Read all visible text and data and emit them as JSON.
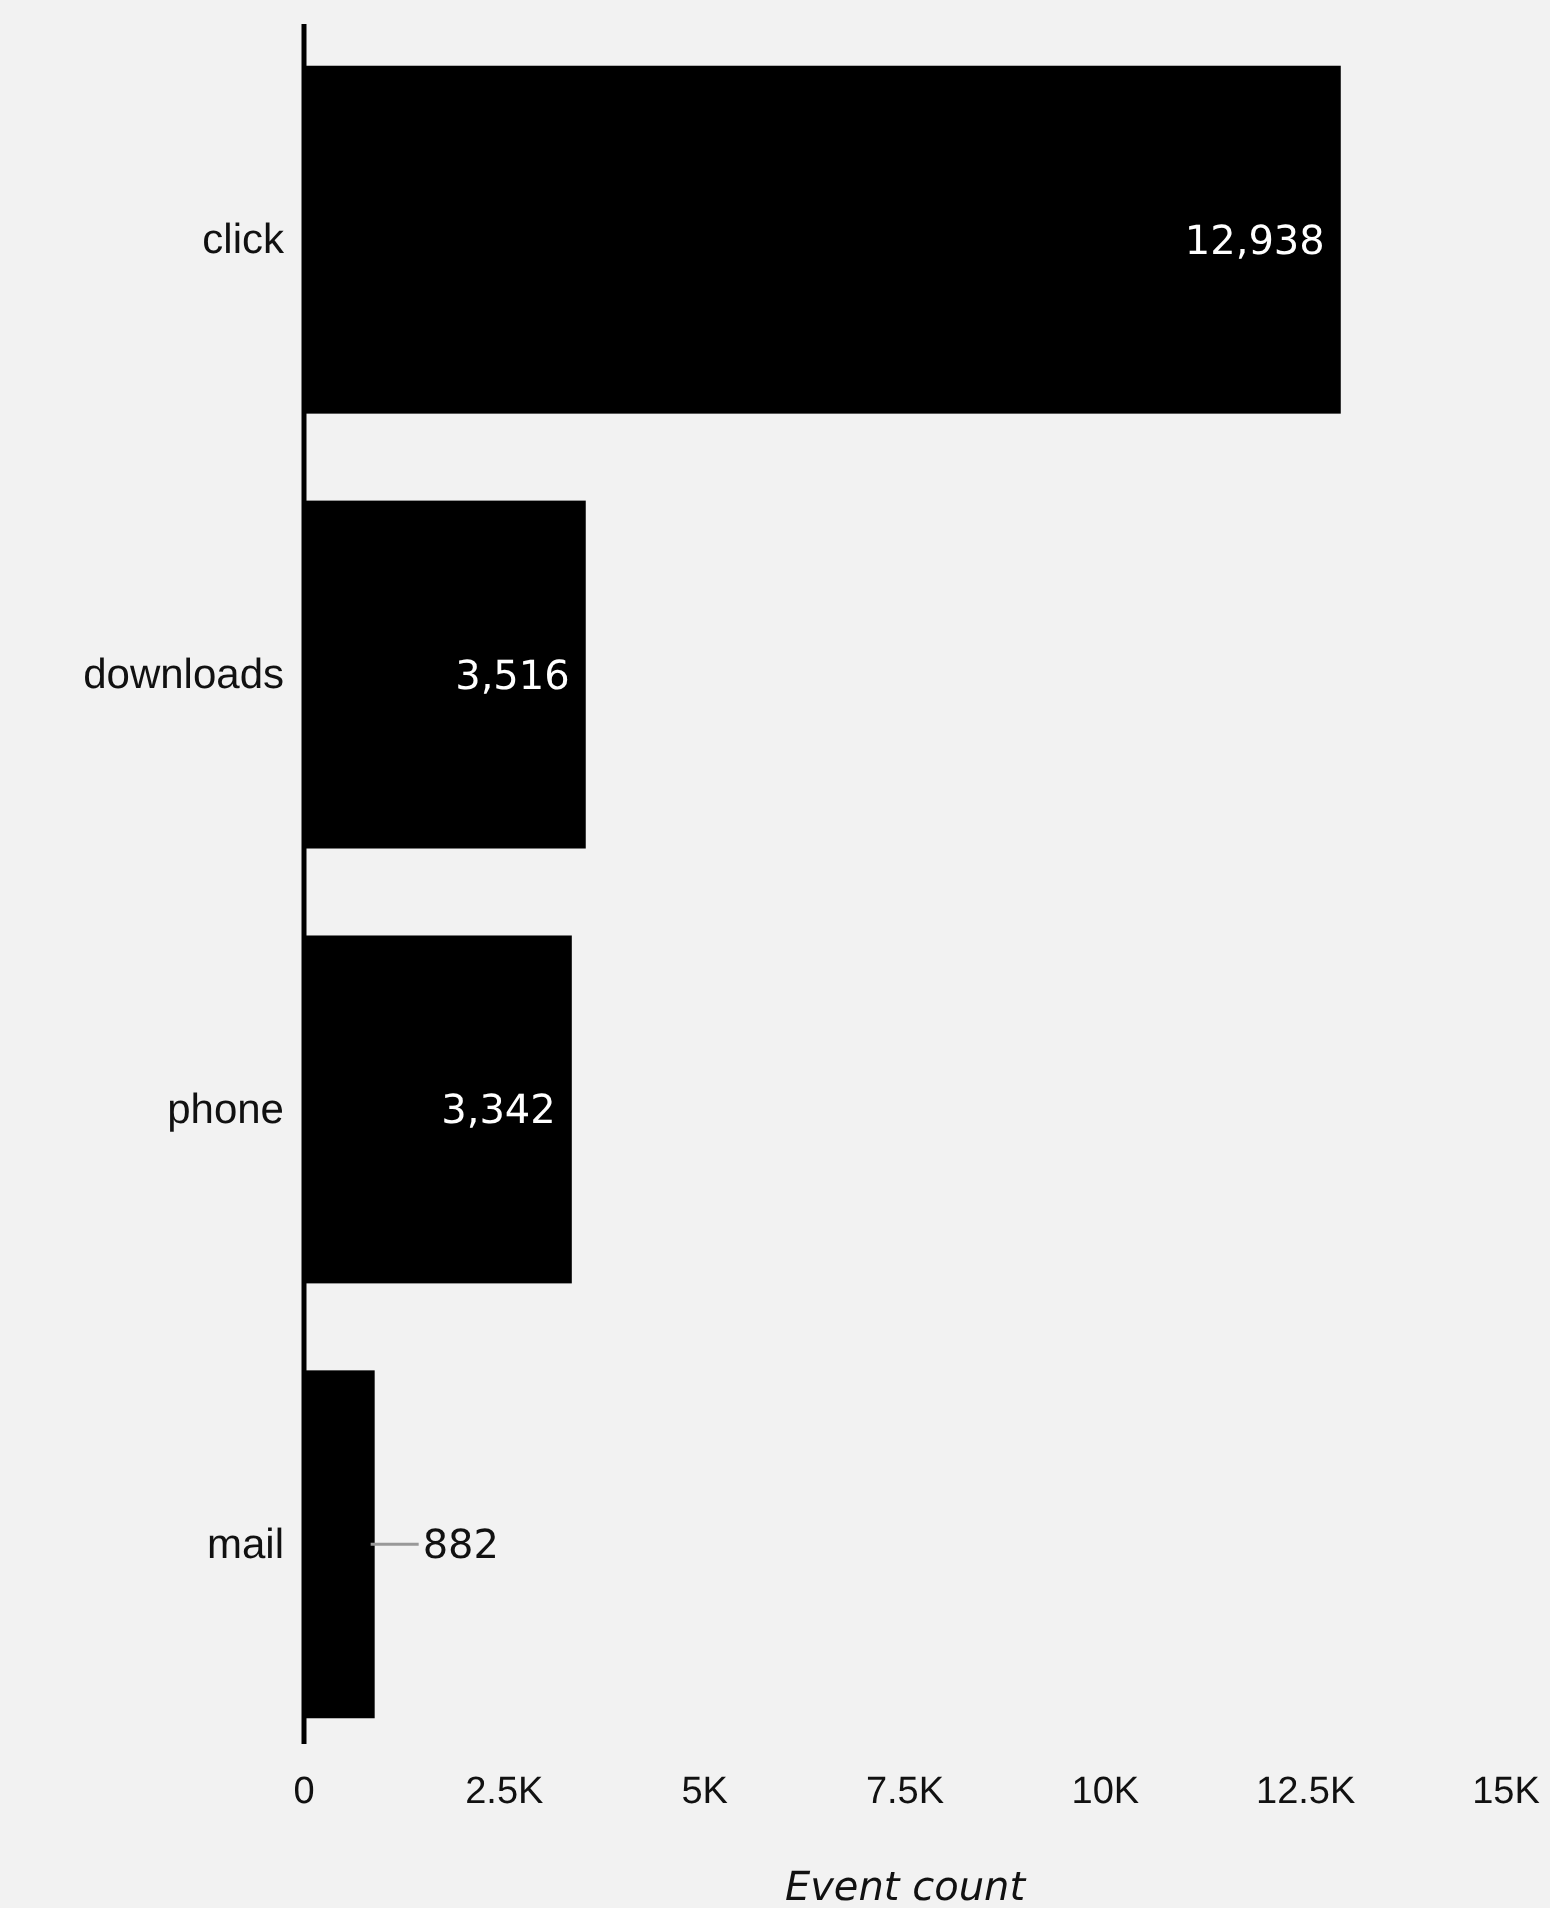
{
  "chart_data": {
    "type": "bar",
    "orientation": "horizontal",
    "xlabel": "Event count",
    "categories": [
      "click",
      "downloads",
      "phone",
      "mail"
    ],
    "values": [
      12938,
      3516,
      3342,
      882
    ],
    "value_labels": [
      "12,938",
      "3,516",
      "3,342",
      "882"
    ],
    "color": "#000000",
    "xlim": [
      0,
      15000
    ],
    "xticks": [
      0,
      {
        "value": 2500,
        "label": "2.5K"
      },
      {
        "value": 5000,
        "label": "5K"
      },
      {
        "value": 7500,
        "label": "7.5K"
      },
      {
        "value": 10000,
        "label": "10K"
      },
      {
        "value": 12500,
        "label": "12.5K"
      },
      {
        "value": 15000,
        "label": "15K"
      }
    ],
    "grid": false
  }
}
